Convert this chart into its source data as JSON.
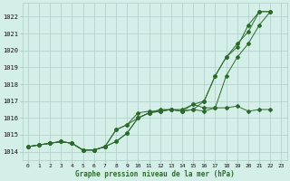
{
  "xlabel": "Graphe pression niveau de la mer (hPa)",
  "xlim": [
    -0.5,
    23.5
  ],
  "ylim": [
    1013.5,
    1022.8
  ],
  "yticks": [
    1014,
    1015,
    1016,
    1017,
    1018,
    1019,
    1020,
    1021,
    1022
  ],
  "xticks": [
    0,
    1,
    2,
    3,
    4,
    5,
    6,
    7,
    8,
    9,
    10,
    11,
    12,
    13,
    14,
    15,
    16,
    17,
    18,
    19,
    20,
    21,
    22,
    23
  ],
  "background_color": "#d4eee8",
  "grid_color": "#b0ccc8",
  "line_color": "#2d6b2d",
  "line1_x": [
    0,
    1,
    2,
    3,
    4,
    5,
    6,
    7,
    8,
    9,
    10,
    11,
    12,
    13,
    14,
    15,
    16,
    17,
    18,
    19,
    20,
    21,
    22
  ],
  "line1_y": [
    1014.3,
    1014.4,
    1014.5,
    1014.6,
    1014.5,
    1014.1,
    1014.1,
    1014.3,
    1014.6,
    1015.1,
    1016.0,
    1016.3,
    1016.4,
    1016.5,
    1016.4,
    1016.5,
    1016.4,
    1016.6,
    1018.5,
    1019.6,
    1020.4,
    1021.5,
    1022.3
  ],
  "line2_x": [
    0,
    1,
    2,
    3,
    4,
    5,
    6,
    7,
    8,
    9,
    10,
    11,
    12,
    13,
    14,
    15,
    16,
    17,
    18,
    19,
    20,
    21,
    22
  ],
  "line2_y": [
    1014.3,
    1014.4,
    1014.5,
    1014.6,
    1014.5,
    1014.1,
    1014.1,
    1014.3,
    1015.3,
    1015.6,
    1016.0,
    1016.3,
    1016.5,
    1016.5,
    1016.5,
    1016.8,
    1017.0,
    1018.5,
    1019.6,
    1020.2,
    1021.5,
    1022.3,
    1022.3
  ],
  "line3_x": [
    0,
    1,
    2,
    3,
    4,
    5,
    6,
    7,
    8,
    9,
    10,
    11,
    12,
    13,
    14,
    15,
    16,
    17,
    18,
    19,
    20,
    21,
    22
  ],
  "line3_y": [
    1014.3,
    1014.4,
    1014.5,
    1014.6,
    1014.5,
    1014.1,
    1014.1,
    1014.3,
    1015.3,
    1015.6,
    1016.3,
    1016.4,
    1016.4,
    1016.5,
    1016.4,
    1016.5,
    1017.0,
    1018.5,
    1019.6,
    1020.4,
    1021.1,
    1022.3,
    1022.3
  ],
  "line4_x": [
    0,
    1,
    2,
    3,
    4,
    5,
    6,
    7,
    8,
    9,
    10,
    11,
    12,
    13,
    14,
    15,
    16,
    17,
    18,
    19,
    20,
    21,
    22
  ],
  "line4_y": [
    1014.3,
    1014.4,
    1014.5,
    1014.6,
    1014.5,
    1014.1,
    1014.1,
    1014.3,
    1014.6,
    1015.1,
    1016.0,
    1016.3,
    1016.4,
    1016.5,
    1016.4,
    1016.8,
    1016.6,
    1016.6,
    1016.6,
    1016.7,
    1016.4,
    1016.5,
    1016.5
  ]
}
